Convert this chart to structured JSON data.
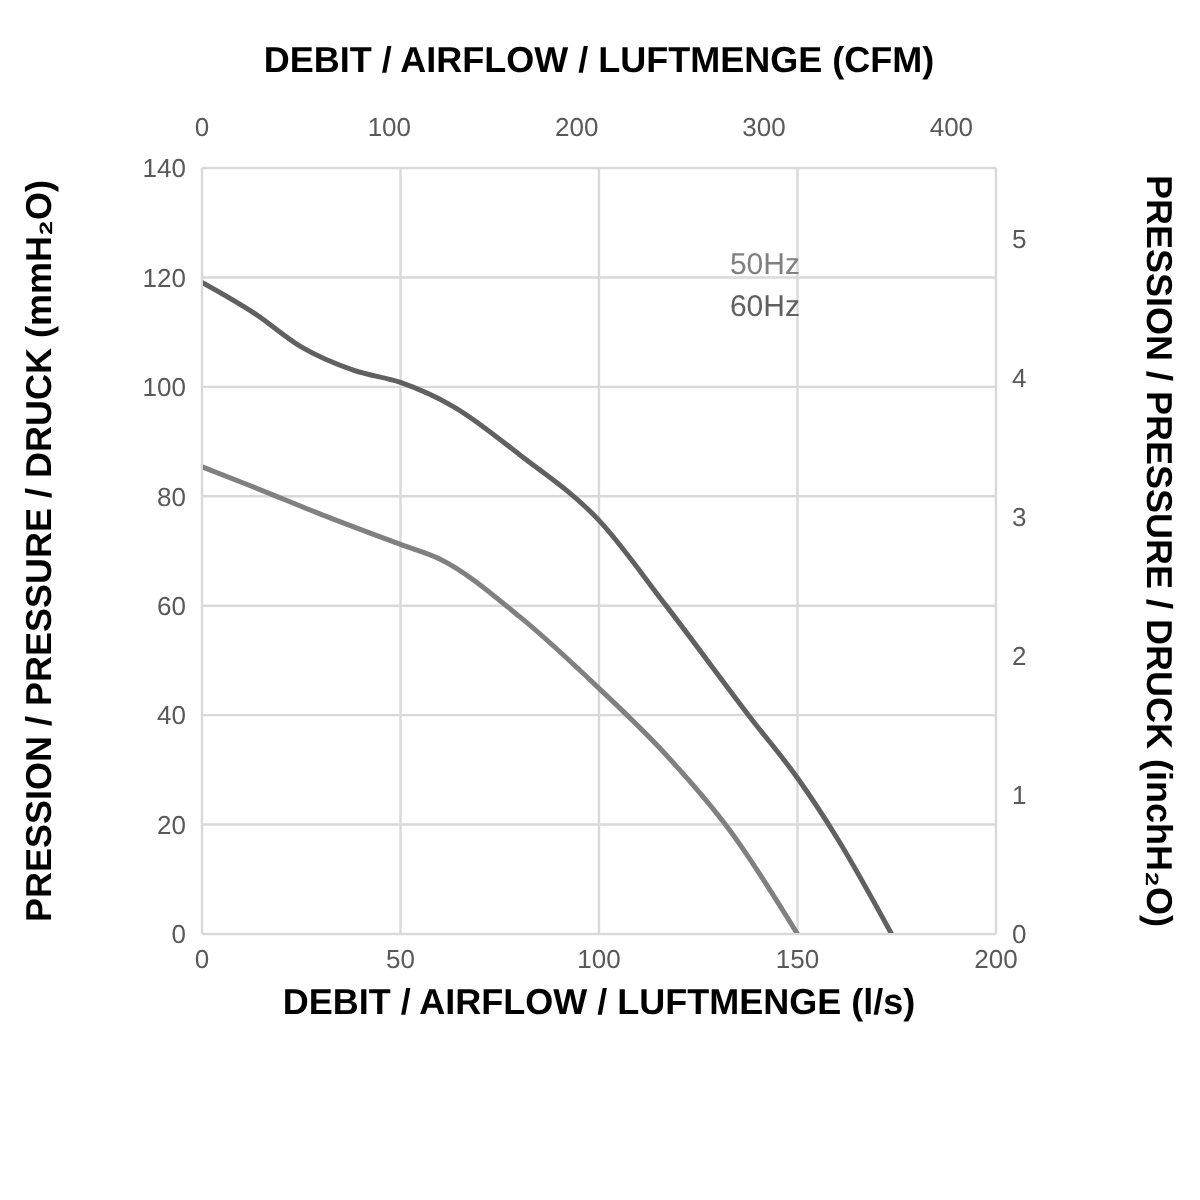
{
  "chart_data": {
    "type": "line",
    "xlabel": "DEBIT / AIRFLOW / LUFTMENGE (l/s)",
    "x2label": "DEBIT / AIRFLOW / LUFTMENGE (CFM)",
    "ylabel": "PRESSION / PRESSURE / DRUCK (mmH₂O)",
    "y2label": "PRESSION / PRESSURE / DRUCK (inchH₂O)",
    "xlim": [
      0,
      200
    ],
    "xticks": [
      0,
      50,
      100,
      150,
      200
    ],
    "x2lim": [
      0,
      423.8
    ],
    "x2ticks": [
      0,
      100,
      200,
      300,
      400
    ],
    "ylim": [
      0,
      140
    ],
    "yticks": [
      0,
      20,
      40,
      60,
      80,
      100,
      120,
      140
    ],
    "y2lim": [
      0,
      5.51
    ],
    "y2ticks": [
      0,
      1,
      2,
      3,
      4,
      5
    ],
    "grid": true,
    "legend": "top right",
    "marker": "none",
    "line_style": "solid",
    "series": [
      {
        "name": "50Hz",
        "color": "#808080",
        "x": [
          0,
          13.3,
          30,
          50,
          60,
          80,
          100,
          116.7,
          133.3,
          150
        ],
        "values": [
          85.4,
          81.6,
          76.7,
          71.2,
          68.5,
          58,
          44.9,
          32.9,
          18.6,
          0
        ]
      },
      {
        "name": "60Hz",
        "color": "#606060",
        "x": [
          0,
          13.3,
          25,
          38.3,
          50,
          63.3,
          80,
          100,
          116.7,
          138.3,
          150,
          160,
          173.7
        ],
        "values": [
          119.1,
          113.4,
          107.3,
          103,
          100.8,
          96.4,
          87.6,
          75.6,
          60.2,
          39.4,
          28.5,
          17.5,
          0
        ]
      }
    ]
  }
}
